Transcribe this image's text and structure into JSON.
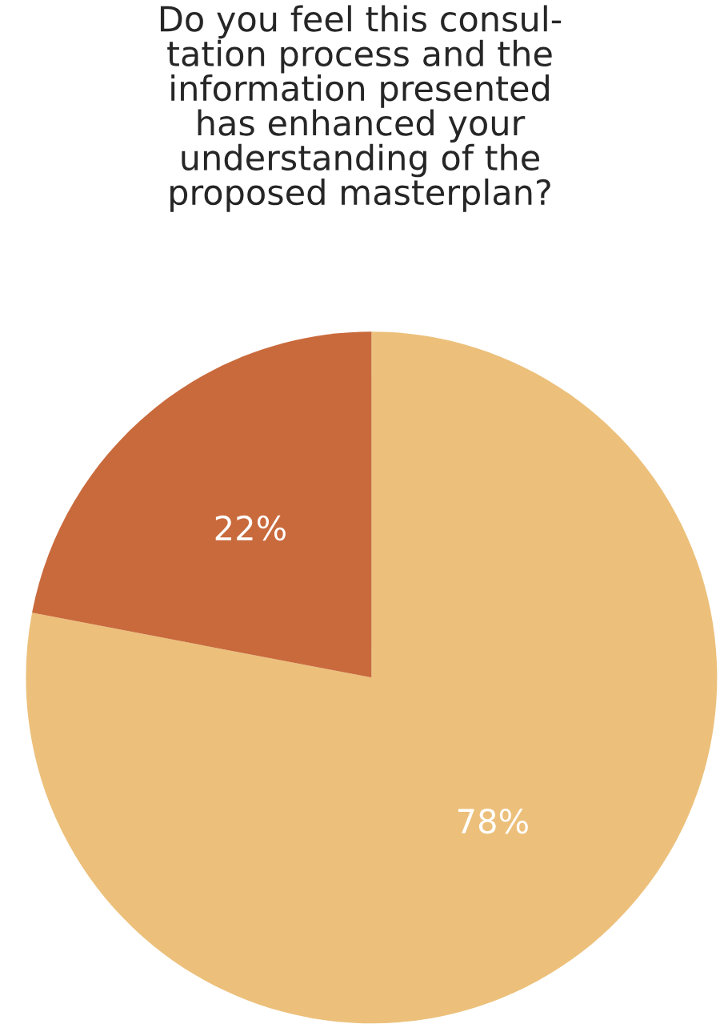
{
  "chart_data": {
    "type": "pie",
    "title": "Do you feel this consul-\ntation process and the\ninformation presented\nhas enhanced your\nunderstanding of the\nproposed masterplan?",
    "categories": [
      null,
      null
    ],
    "values": [
      78,
      22
    ],
    "colors": [
      "#ecc07b",
      "#c96a3c"
    ],
    "value_labels": [
      "78%",
      "22%"
    ]
  }
}
